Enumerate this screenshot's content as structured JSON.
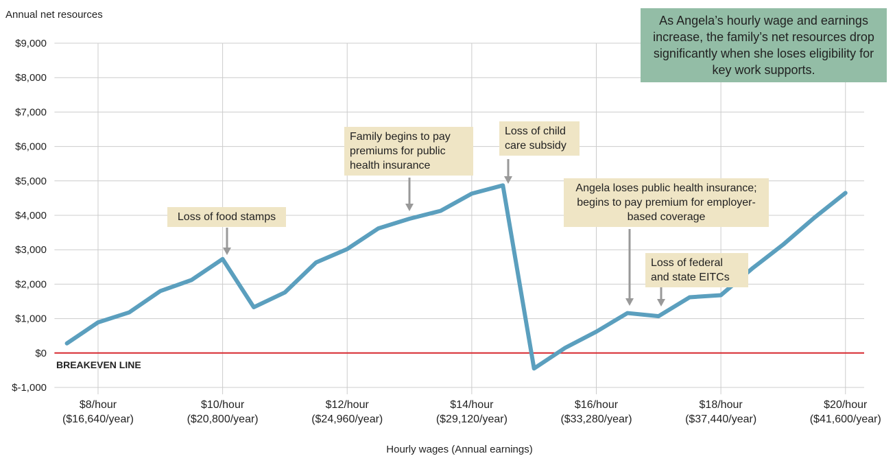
{
  "chart_data": {
    "type": "line",
    "y_axis_label": "Annual net resources",
    "x_axis_label": "Hourly wages (Annual earnings)",
    "callout": "As Angela’s hourly wage and earnings increase, the family’s net resources drop significantly when she loses eligibility for key work supports.",
    "annotations": [
      "Loss of food stamps",
      "Family begins to pay premiums for public health insurance",
      "Loss of child care subsidy",
      "Angela loses public health insurance; begins to pay premium for employer-based coverage",
      "Loss of federal and state EITCs"
    ],
    "reference_line": {
      "value": 0,
      "label": "BREAKEVEN LINE",
      "color": "#d7282f"
    },
    "x": [
      7.5,
      8,
      8.5,
      9,
      9.5,
      10,
      10.5,
      11,
      11.5,
      12,
      12.5,
      13,
      13.5,
      14,
      14.5,
      15,
      15.5,
      16,
      16.5,
      17,
      17.5,
      18,
      18.5,
      19,
      19.5,
      20
    ],
    "series": [
      {
        "name": "Net resources",
        "color": "#5b9fbe",
        "values": [
          280,
          890,
          1180,
          1800,
          2120,
          2730,
          1330,
          1760,
          2630,
          3020,
          3620,
          3900,
          4130,
          4630,
          4870,
          -450,
          150,
          620,
          1160,
          1070,
          1620,
          1680,
          2450,
          3150,
          3930,
          4650
        ]
      }
    ],
    "xlim": [
      7.3,
      20.3
    ],
    "xticks": [
      {
        "value": 8,
        "label": "$8/hour ($16,640/year)"
      },
      {
        "value": 10,
        "label": "$10/hour ($20,800/year)"
      },
      {
        "value": 12,
        "label": "$12/hour ($24,960/year)"
      },
      {
        "value": 14,
        "label": "$14/hour ($29,120/year)"
      },
      {
        "value": 16,
        "label": "$16/hour ($33,280/year)"
      },
      {
        "value": 18,
        "label": "$18/hour ($37,440/year)"
      },
      {
        "value": 20,
        "label": "$20/hour ($41,600/year)"
      }
    ],
    "ylim": [
      -1000,
      9000
    ],
    "yticks": [
      {
        "value": -1000,
        "label": "$-1,000"
      },
      {
        "value": 0,
        "label": "$0"
      },
      {
        "value": 1000,
        "label": "$1,000"
      },
      {
        "value": 2000,
        "label": "$2,000"
      },
      {
        "value": 3000,
        "label": "$3,000"
      },
      {
        "value": 4000,
        "label": "$4,000"
      },
      {
        "value": 5000,
        "label": "$5,000"
      },
      {
        "value": 6000,
        "label": "$6,000"
      },
      {
        "value": 7000,
        "label": "$7,000"
      },
      {
        "value": 8000,
        "label": "$8,000"
      },
      {
        "value": 9000,
        "label": "$9,000"
      }
    ],
    "grid": true
  }
}
